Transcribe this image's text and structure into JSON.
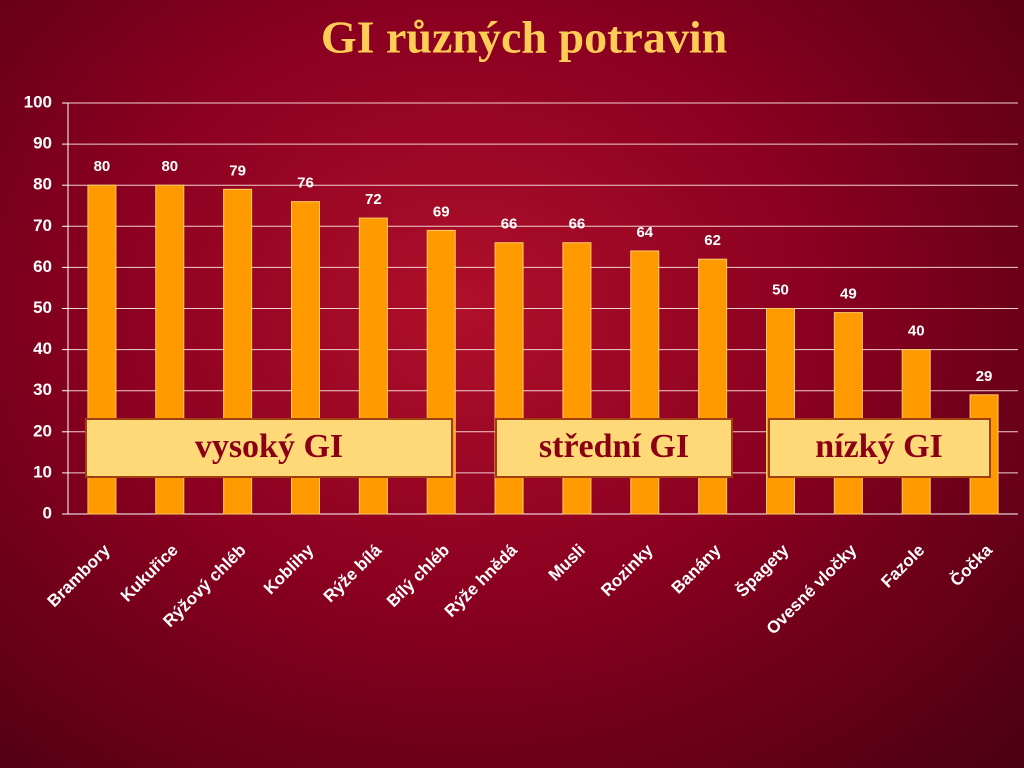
{
  "chart_data": {
    "type": "bar",
    "title": "GI různých potravin",
    "categories": [
      "Brambory",
      "Kukuřice",
      "Rýžový chléb",
      "Koblihy",
      "Rýže bílá",
      "Bílý chléb",
      "Rýže hnědá",
      "Musli",
      "Rozinky",
      "Banány",
      "Špagety",
      "Ovesné vločky",
      "Fazole",
      "Čočka"
    ],
    "values": [
      80,
      80,
      79,
      76,
      72,
      69,
      66,
      66,
      64,
      62,
      50,
      49,
      40,
      29
    ],
    "color": "#ff9900",
    "ylim": [
      0,
      100
    ],
    "yticks": [
      0,
      10,
      20,
      30,
      40,
      50,
      60,
      70,
      80,
      90,
      100
    ],
    "grid": true,
    "annotations": [
      "vysoký GI",
      "střední GI",
      "nízký GI"
    ]
  }
}
